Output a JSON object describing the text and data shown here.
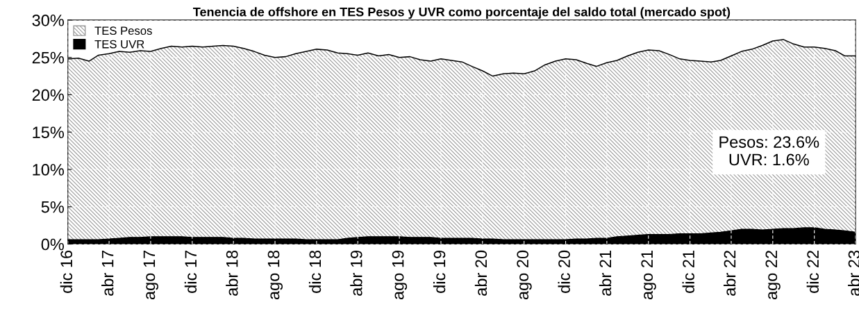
{
  "chart_data": {
    "type": "area",
    "stacked": true,
    "title": "Tenencia de offshore en TES Pesos y UVR como porcentaje del saldo total (mercado spot)",
    "x": [
      "2016-12",
      "2017-01",
      "2017-02",
      "2017-03",
      "2017-04",
      "2017-05",
      "2017-06",
      "2017-07",
      "2017-08",
      "2017-09",
      "2017-10",
      "2017-11",
      "2017-12",
      "2018-01",
      "2018-02",
      "2018-03",
      "2018-04",
      "2018-05",
      "2018-06",
      "2018-07",
      "2018-08",
      "2018-09",
      "2018-10",
      "2018-11",
      "2018-12",
      "2019-01",
      "2019-02",
      "2019-03",
      "2019-04",
      "2019-05",
      "2019-06",
      "2019-07",
      "2019-08",
      "2019-09",
      "2019-10",
      "2019-11",
      "2019-12",
      "2020-01",
      "2020-02",
      "2020-03",
      "2020-04",
      "2020-05",
      "2020-06",
      "2020-07",
      "2020-08",
      "2020-09",
      "2020-10",
      "2020-11",
      "2020-12",
      "2021-01",
      "2021-02",
      "2021-03",
      "2021-04",
      "2021-05",
      "2021-06",
      "2021-07",
      "2021-08",
      "2021-09",
      "2021-10",
      "2021-11",
      "2021-12",
      "2022-01",
      "2022-02",
      "2022-03",
      "2022-04",
      "2022-05",
      "2022-06",
      "2022-07",
      "2022-08",
      "2022-09",
      "2022-10",
      "2022-11",
      "2022-12",
      "2023-01",
      "2023-02",
      "2023-03",
      "2023-04"
    ],
    "series": [
      {
        "name": "TES UVR",
        "color": "#000000",
        "values": [
          0.6,
          0.6,
          0.6,
          0.6,
          0.7,
          0.8,
          0.9,
          0.9,
          1.0,
          1.0,
          1.0,
          1.0,
          0.9,
          0.9,
          0.9,
          0.9,
          0.8,
          0.8,
          0.7,
          0.7,
          0.7,
          0.7,
          0.7,
          0.6,
          0.6,
          0.6,
          0.6,
          0.8,
          0.9,
          1.0,
          1.0,
          1.0,
          1.0,
          0.9,
          0.9,
          0.9,
          0.8,
          0.8,
          0.8,
          0.8,
          0.7,
          0.7,
          0.6,
          0.6,
          0.6,
          0.6,
          0.6,
          0.6,
          0.6,
          0.7,
          0.7,
          0.8,
          0.8,
          1.0,
          1.1,
          1.2,
          1.3,
          1.3,
          1.3,
          1.4,
          1.4,
          1.4,
          1.5,
          1.6,
          1.8,
          2.0,
          2.0,
          1.9,
          2.0,
          2.1,
          2.1,
          2.2,
          2.2,
          2.0,
          1.9,
          1.8,
          1.6
        ]
      },
      {
        "name": "TES Pesos",
        "color": "#9a9a9a",
        "values": [
          24.2,
          24.3,
          23.9,
          24.7,
          24.8,
          25.0,
          24.8,
          25.0,
          24.8,
          25.2,
          25.5,
          25.4,
          25.6,
          25.5,
          25.6,
          25.7,
          25.7,
          25.4,
          25.1,
          24.6,
          24.3,
          24.4,
          24.8,
          25.2,
          25.5,
          25.4,
          25.0,
          24.7,
          24.4,
          24.6,
          24.2,
          24.4,
          24.0,
          24.2,
          23.8,
          23.6,
          24.0,
          23.8,
          23.6,
          23.0,
          22.5,
          21.8,
          22.2,
          22.3,
          22.2,
          22.6,
          23.4,
          23.9,
          24.2,
          24.0,
          23.5,
          23.0,
          23.5,
          23.6,
          24.1,
          24.5,
          24.7,
          24.6,
          24.1,
          23.4,
          23.2,
          23.1,
          22.9,
          23.0,
          23.4,
          23.8,
          24.1,
          24.7,
          25.2,
          25.3,
          24.7,
          24.2,
          24.2,
          24.2,
          24.0,
          23.4,
          23.6
        ]
      }
    ],
    "xlim": [
      "2016-12",
      "2023-04"
    ],
    "xticks": [
      {
        "value": "2016-12",
        "label": "dic 16"
      },
      {
        "value": "2017-04",
        "label": "abr 17"
      },
      {
        "value": "2017-08",
        "label": "ago 17"
      },
      {
        "value": "2017-12",
        "label": "dic 17"
      },
      {
        "value": "2018-04",
        "label": "abr 18"
      },
      {
        "value": "2018-08",
        "label": "ago 18"
      },
      {
        "value": "2018-12",
        "label": "dic 18"
      },
      {
        "value": "2019-04",
        "label": "abr 19"
      },
      {
        "value": "2019-08",
        "label": "ago 19"
      },
      {
        "value": "2019-12",
        "label": "dic 19"
      },
      {
        "value": "2020-04",
        "label": "abr 20"
      },
      {
        "value": "2020-08",
        "label": "ago 20"
      },
      {
        "value": "2020-12",
        "label": "dic 20"
      },
      {
        "value": "2021-04",
        "label": "abr 21"
      },
      {
        "value": "2021-08",
        "label": "ago 21"
      },
      {
        "value": "2021-12",
        "label": "dic 21"
      },
      {
        "value": "2022-04",
        "label": "abr 22"
      },
      {
        "value": "2022-08",
        "label": "ago 22"
      },
      {
        "value": "2022-12",
        "label": "dic 22"
      },
      {
        "value": "2023-04",
        "label": "abr 23"
      }
    ],
    "ylim": [
      0,
      30
    ],
    "yticks": [
      {
        "value": 0,
        "label": "0%"
      },
      {
        "value": 5,
        "label": "5%"
      },
      {
        "value": 10,
        "label": "10%"
      },
      {
        "value": 15,
        "label": "15%"
      },
      {
        "value": 20,
        "label": "20%"
      },
      {
        "value": 25,
        "label": "25%"
      },
      {
        "value": 30,
        "label": "30%"
      }
    ],
    "grid": true,
    "legend": "top left",
    "annotations": [
      "Pesos: 23.6%\nUVR: 1.6%"
    ]
  }
}
